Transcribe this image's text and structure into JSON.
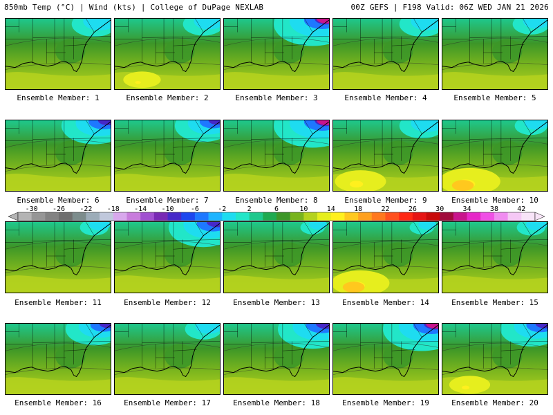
{
  "header": {
    "left": "850mb Temp (°C) | Wind (kts) | College of DuPage NEXLAB",
    "right": "00Z GEFS | F198 Valid: 06Z WED JAN 21 2026"
  },
  "members": [
    {
      "label": "Ensemble Member: 1",
      "cold": 0.55,
      "warm": 0.5
    },
    {
      "label": "Ensemble Member: 2",
      "cold": 0.5,
      "warm": 0.55
    },
    {
      "label": "Ensemble Member: 3",
      "cold": 0.95,
      "warm": 0.35
    },
    {
      "label": "Ensemble Member: 4",
      "cold": 0.55,
      "warm": 0.35
    },
    {
      "label": "Ensemble Member: 5",
      "cold": 0.45,
      "warm": 0.4
    },
    {
      "label": "Ensemble Member: 6",
      "cold": 0.8,
      "warm": 0.35
    },
    {
      "label": "Ensemble Member: 7",
      "cold": 0.7,
      "warm": 0.4
    },
    {
      "label": "Ensemble Member: 8",
      "cold": 0.95,
      "warm": 0.4
    },
    {
      "label": "Ensemble Member: 9",
      "cold": 0.55,
      "warm": 0.75
    },
    {
      "label": "Ensemble Member: 10",
      "cold": 0.4,
      "warm": 0.9
    },
    {
      "label": "Ensemble Member: 11",
      "cold": 0.35,
      "warm": 0.45
    },
    {
      "label": "Ensemble Member: 12",
      "cold": 0.85,
      "warm": 0.45
    },
    {
      "label": "Ensemble Member: 13",
      "cold": 0.3,
      "warm": 0.45
    },
    {
      "label": "Ensemble Member: 14",
      "cold": 0.3,
      "warm": 0.85
    },
    {
      "label": "Ensemble Member: 15",
      "cold": 0.35,
      "warm": 0.45
    },
    {
      "label": "Ensemble Member: 16",
      "cold": 0.7,
      "warm": 0.5
    },
    {
      "label": "Ensemble Member: 17",
      "cold": 0.45,
      "warm": 0.45
    },
    {
      "label": "Ensemble Member: 18",
      "cold": 0.85,
      "warm": 0.5
    },
    {
      "label": "Ensemble Member: 19",
      "cold": 0.95,
      "warm": 0.45
    },
    {
      "label": "Ensemble Member: 20",
      "cold": 0.75,
      "warm": 0.6
    }
  ],
  "colorbar": {
    "tick_labels": [
      "-30",
      "-26",
      "-22",
      "-18",
      "-14",
      "-10",
      "-6",
      "-2",
      "2",
      "6",
      "10",
      "14",
      "18",
      "22",
      "26",
      "30",
      "34",
      "38",
      "42"
    ],
    "colors": [
      "#b4b4b4",
      "#969696",
      "#828282",
      "#6e6e6e",
      "#7c8c8c",
      "#9cacb8",
      "#c0c8dc",
      "#d8a8ec",
      "#c87cdc",
      "#a050d0",
      "#7828b4",
      "#4628c8",
      "#1c46ee",
      "#1e78ff",
      "#1eb4ff",
      "#1edcf0",
      "#22e6c8",
      "#1ec88c",
      "#1eaa50",
      "#3c9628",
      "#78b41e",
      "#b4d21e",
      "#e6ee1e",
      "#fff01e",
      "#ffc81e",
      "#ffa01e",
      "#ff781e",
      "#ff501e",
      "#ff2814",
      "#e61414",
      "#c80a0a",
      "#a00a3c",
      "#c8148c",
      "#e628c8",
      "#f050e6",
      "#f08cf0",
      "#f5c8f5",
      "#f8e4f8"
    ]
  }
}
